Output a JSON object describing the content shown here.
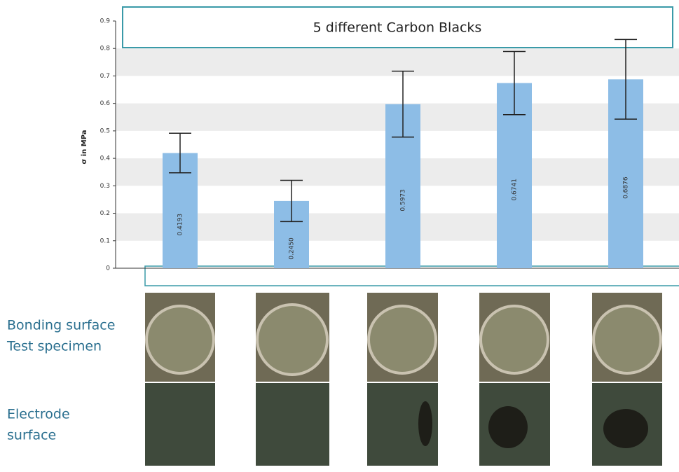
{
  "chart_data": {
    "type": "bar",
    "title": "5 different Carbon Blacks",
    "y_label": "σ in MPa",
    "categories": [
      null,
      null,
      null,
      null,
      null
    ],
    "values": [
      0.4193,
      0.245,
      0.5973,
      0.6741,
      0.6876
    ],
    "value_labels": [
      "0.4193",
      "0.2450",
      "0.5973",
      "0.6741",
      "0.6876"
    ],
    "errors": [
      0.072,
      0.075,
      0.12,
      0.115,
      0.145
    ],
    "color": "#8dbde6",
    "ylim": [
      0,
      0.9
    ],
    "yticks": [
      0,
      0.1,
      0.2,
      0.3,
      0.4,
      0.5,
      0.6,
      0.7,
      0.8,
      0.9
    ],
    "grid": true
  },
  "photo_rows": [
    {
      "lines": [
        "Bonding surface",
        "Test specimen"
      ]
    },
    {
      "lines": [
        "Electrode",
        "surface"
      ]
    }
  ]
}
